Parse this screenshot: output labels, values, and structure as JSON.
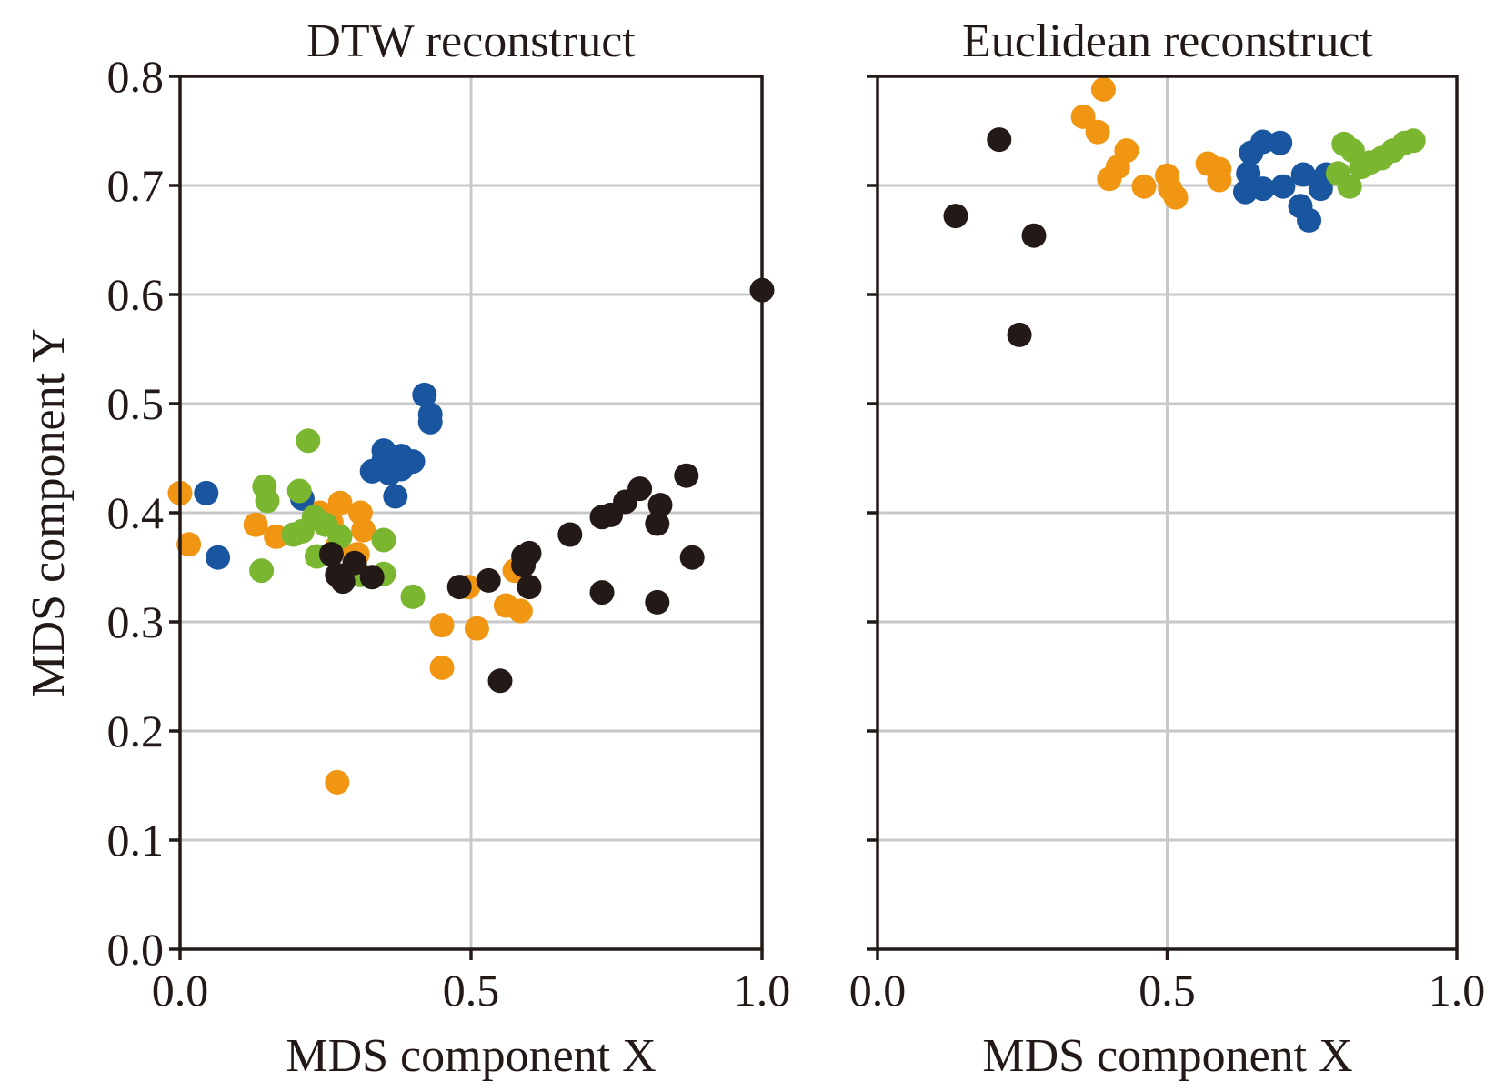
{
  "chart_data": [
    {
      "type": "scatter",
      "title": "DTW reconstruct",
      "xlabel": "MDS component X",
      "ylabel": "MDS component Y",
      "xlim": [
        0,
        1
      ],
      "ylim": [
        0,
        0.8
      ],
      "xticks": [
        "0.0",
        "0.5",
        "1.0"
      ],
      "yticks": [
        "0.0",
        "0.1",
        "0.2",
        "0.3",
        "0.4",
        "0.5",
        "0.6",
        "0.7",
        "0.8"
      ],
      "grid": true,
      "series": [
        {
          "name": "orange",
          "color": "#f09613",
          "points": [
            [
              0.0,
              0.418
            ],
            [
              0.015,
              0.371
            ],
            [
              0.13,
              0.389
            ],
            [
              0.165,
              0.378
            ],
            [
              0.275,
              0.409
            ],
            [
              0.31,
              0.4
            ],
            [
              0.315,
              0.384
            ],
            [
              0.26,
              0.391
            ],
            [
              0.27,
              0.369
            ],
            [
              0.305,
              0.362
            ],
            [
              0.45,
              0.297
            ],
            [
              0.495,
              0.332
            ],
            [
              0.51,
              0.294
            ],
            [
              0.45,
              0.258
            ],
            [
              0.56,
              0.315
            ],
            [
              0.585,
              0.31
            ],
            [
              0.575,
              0.347
            ],
            [
              0.27,
              0.153
            ],
            [
              0.24,
              0.4
            ]
          ]
        },
        {
          "name": "blue",
          "color": "#1a56a0",
          "points": [
            [
              0.045,
              0.418
            ],
            [
              0.065,
              0.359
            ],
            [
              0.21,
              0.413
            ],
            [
              0.42,
              0.508
            ],
            [
              0.43,
              0.49
            ],
            [
              0.43,
              0.483
            ],
            [
              0.33,
              0.438
            ],
            [
              0.35,
              0.457
            ],
            [
              0.38,
              0.452
            ],
            [
              0.4,
              0.447
            ],
            [
              0.36,
              0.436
            ],
            [
              0.38,
              0.44
            ],
            [
              0.37,
              0.415
            ],
            [
              0.35,
              0.448
            ]
          ]
        },
        {
          "name": "green",
          "color": "#7ab62f",
          "points": [
            [
              0.22,
              0.466
            ],
            [
              0.145,
              0.424
            ],
            [
              0.15,
              0.411
            ],
            [
              0.205,
              0.42
            ],
            [
              0.14,
              0.347
            ],
            [
              0.195,
              0.38
            ],
            [
              0.21,
              0.383
            ],
            [
              0.23,
              0.396
            ],
            [
              0.25,
              0.389
            ],
            [
              0.235,
              0.36
            ],
            [
              0.275,
              0.378
            ],
            [
              0.35,
              0.375
            ],
            [
              0.35,
              0.344
            ],
            [
              0.4,
              0.323
            ],
            [
              0.31,
              0.343
            ]
          ]
        },
        {
          "name": "black",
          "color": "#231a18",
          "points": [
            [
              0.26,
              0.362
            ],
            [
              0.27,
              0.343
            ],
            [
              0.28,
              0.337
            ],
            [
              0.3,
              0.354
            ],
            [
              0.33,
              0.341
            ],
            [
              0.48,
              0.332
            ],
            [
              0.53,
              0.338
            ],
            [
              0.55,
              0.246
            ],
            [
              0.59,
              0.36
            ],
            [
              0.6,
              0.363
            ],
            [
              0.59,
              0.352
            ],
            [
              0.6,
              0.332
            ],
            [
              0.67,
              0.38
            ],
            [
              0.725,
              0.396
            ],
            [
              0.74,
              0.398
            ],
            [
              0.765,
              0.41
            ],
            [
              0.79,
              0.422
            ],
            [
              0.825,
              0.407
            ],
            [
              0.82,
              0.39
            ],
            [
              0.87,
              0.434
            ],
            [
              0.88,
              0.359
            ],
            [
              0.725,
              0.327
            ],
            [
              0.82,
              0.318
            ],
            [
              1.0,
              0.604
            ]
          ]
        }
      ]
    },
    {
      "type": "scatter",
      "title": "Euclidean reconstruct",
      "xlabel": "MDS component X",
      "ylabel": "",
      "xlim": [
        0,
        1
      ],
      "ylim": [
        0,
        0.8
      ],
      "xticks": [
        "0.0",
        "0.5",
        "1.0"
      ],
      "yticks": [],
      "grid": true,
      "series": [
        {
          "name": "orange",
          "color": "#f09613",
          "points": [
            [
              0.39,
              0.788
            ],
            [
              0.355,
              0.763
            ],
            [
              0.38,
              0.749
            ],
            [
              0.43,
              0.732
            ],
            [
              0.415,
              0.717
            ],
            [
              0.4,
              0.706
            ],
            [
              0.46,
              0.699
            ],
            [
              0.5,
              0.709
            ],
            [
              0.505,
              0.697
            ],
            [
              0.515,
              0.689
            ],
            [
              0.57,
              0.72
            ],
            [
              0.59,
              0.715
            ],
            [
              0.59,
              0.705
            ]
          ]
        },
        {
          "name": "blue",
          "color": "#1a56a0",
          "points": [
            [
              0.64,
              0.711
            ],
            [
              0.645,
              0.73
            ],
            [
              0.665,
              0.74
            ],
            [
              0.695,
              0.739
            ],
            [
              0.665,
              0.697
            ],
            [
              0.635,
              0.694
            ],
            [
              0.7,
              0.699
            ],
            [
              0.735,
              0.71
            ],
            [
              0.73,
              0.681
            ],
            [
              0.745,
              0.668
            ],
            [
              0.765,
              0.697
            ],
            [
              0.775,
              0.71
            ]
          ]
        },
        {
          "name": "green",
          "color": "#7ab62f",
          "points": [
            [
              0.805,
              0.738
            ],
            [
              0.82,
              0.732
            ],
            [
              0.795,
              0.711
            ],
            [
              0.815,
              0.699
            ],
            [
              0.835,
              0.717
            ],
            [
              0.87,
              0.725
            ],
            [
              0.89,
              0.732
            ],
            [
              0.91,
              0.739
            ],
            [
              0.925,
              0.741
            ],
            [
              0.85,
              0.721
            ]
          ]
        },
        {
          "name": "black",
          "color": "#231a18",
          "points": [
            [
              0.21,
              0.742
            ],
            [
              0.135,
              0.672
            ],
            [
              0.27,
              0.654
            ],
            [
              0.245,
              0.563
            ]
          ]
        }
      ]
    }
  ]
}
